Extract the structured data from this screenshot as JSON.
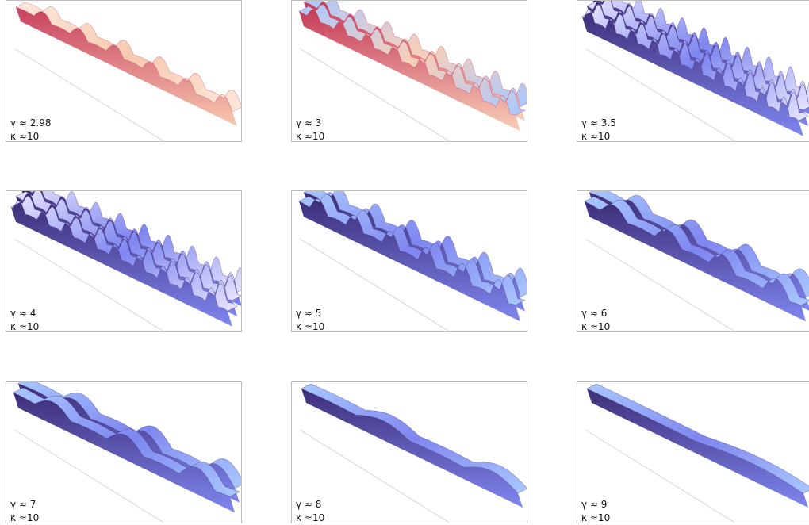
{
  "panels": [
    {
      "gamma": "γ ≈ 2.98",
      "kappa": "κ ≈10",
      "palette": "warm",
      "waves": 6,
      "amp": 18,
      "ridges": 1
    },
    {
      "gamma": "γ ≈ 3",
      "kappa": "κ ≈10",
      "palette": "mixed",
      "waves": 8,
      "amp": 22,
      "ridges": 2
    },
    {
      "gamma": "γ ≈ 3.5",
      "kappa": "κ ≈10",
      "palette": "blue_red",
      "waves": 10,
      "amp": 26,
      "ridges": 3
    },
    {
      "gamma": "γ ≈ 4",
      "kappa": "κ ≈10",
      "palette": "blue_red",
      "waves": 9,
      "amp": 24,
      "ridges": 3
    },
    {
      "gamma": "γ ≈ 5",
      "kappa": "κ ≈10",
      "palette": "blue",
      "waves": 6,
      "amp": 28,
      "ridges": 2
    },
    {
      "gamma": "γ ≈ 6",
      "kappa": "κ ≈10",
      "palette": "blue",
      "waves": 4,
      "amp": 24,
      "ridges": 2
    },
    {
      "gamma": "γ ≈ 7",
      "kappa": "κ ≈10",
      "palette": "blue",
      "waves": 3,
      "amp": 22,
      "ridges": 2
    },
    {
      "gamma": "γ ≈ 8",
      "kappa": "κ ≈10",
      "palette": "blue",
      "waves": 2,
      "amp": 14,
      "ridges": 1
    },
    {
      "gamma": "γ ≈ 9",
      "kappa": "κ ≈10",
      "palette": "blue",
      "waves": 1,
      "amp": 8,
      "ridges": 1
    }
  ],
  "colors": {
    "warm_fill": "#f7c9b0",
    "warm_dark": "#c8405e",
    "blue_light": "#a9c8ff",
    "blue_mid": "#7f86f0",
    "blue_dark": "#3d2d77",
    "red_edge": "#c63b5a",
    "frame": "#bdbdbd"
  }
}
